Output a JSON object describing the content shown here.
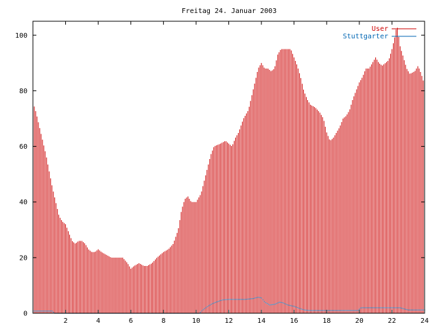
{
  "chart_data": {
    "type": "bar",
    "title": "Freitag 24. Januar 2003",
    "xlabel": "",
    "ylabel": "",
    "xlim": [
      0,
      24
    ],
    "ylim": [
      0,
      105
    ],
    "x_ticks": [
      "2",
      "4",
      "6",
      "8",
      "10",
      "12",
      "14",
      "16",
      "18",
      "20",
      "22",
      "24"
    ],
    "y_ticks": [
      "0",
      "20",
      "40",
      "60",
      "80",
      "100"
    ],
    "grid": false,
    "legend_position": "top-right",
    "sample_interval_minutes": 5,
    "series": [
      {
        "name": "User",
        "color": "#cc0000",
        "style": "impulses",
        "anchors": [
          [
            0,
            76
          ],
          [
            0.2,
            72
          ],
          [
            0.4,
            67
          ],
          [
            0.6,
            62
          ],
          [
            0.8,
            57
          ],
          [
            1.0,
            51
          ],
          [
            1.2,
            45
          ],
          [
            1.4,
            40
          ],
          [
            1.6,
            35
          ],
          [
            1.8,
            33
          ],
          [
            2.0,
            32
          ],
          [
            2.2,
            29
          ],
          [
            2.4,
            26
          ],
          [
            2.6,
            25
          ],
          [
            2.8,
            26
          ],
          [
            3.0,
            26
          ],
          [
            3.2,
            25
          ],
          [
            3.4,
            23
          ],
          [
            3.6,
            22
          ],
          [
            3.8,
            22
          ],
          [
            4.0,
            23
          ],
          [
            4.2,
            22
          ],
          [
            4.5,
            21
          ],
          [
            4.8,
            20
          ],
          [
            5.0,
            20
          ],
          [
            5.5,
            20
          ],
          [
            5.8,
            18
          ],
          [
            6.0,
            16
          ],
          [
            6.2,
            17
          ],
          [
            6.5,
            18
          ],
          [
            6.8,
            17
          ],
          [
            7.0,
            17
          ],
          [
            7.3,
            18
          ],
          [
            7.6,
            20
          ],
          [
            8.0,
            22
          ],
          [
            8.3,
            23
          ],
          [
            8.6,
            25
          ],
          [
            8.9,
            30
          ],
          [
            9.1,
            37
          ],
          [
            9.3,
            41
          ],
          [
            9.5,
            42
          ],
          [
            9.7,
            40
          ],
          [
            10.0,
            40
          ],
          [
            10.3,
            43
          ],
          [
            10.6,
            50
          ],
          [
            10.9,
            57
          ],
          [
            11.1,
            60
          ],
          [
            11.5,
            61
          ],
          [
            11.8,
            62
          ],
          [
            12.0,
            61
          ],
          [
            12.2,
            60
          ],
          [
            12.4,
            63
          ],
          [
            12.6,
            65
          ],
          [
            12.9,
            70
          ],
          [
            13.2,
            73
          ],
          [
            13.4,
            78
          ],
          [
            13.6,
            83
          ],
          [
            13.8,
            88
          ],
          [
            14.0,
            90
          ],
          [
            14.2,
            88
          ],
          [
            14.4,
            88
          ],
          [
            14.6,
            87
          ],
          [
            14.8,
            88
          ],
          [
            15.0,
            93
          ],
          [
            15.2,
            95
          ],
          [
            15.5,
            95
          ],
          [
            15.8,
            95
          ],
          [
            16.0,
            92
          ],
          [
            16.2,
            89
          ],
          [
            16.4,
            85
          ],
          [
            16.6,
            80
          ],
          [
            16.8,
            77
          ],
          [
            17.0,
            75
          ],
          [
            17.3,
            74
          ],
          [
            17.6,
            72
          ],
          [
            17.8,
            70
          ],
          [
            18.0,
            65
          ],
          [
            18.2,
            62
          ],
          [
            18.4,
            63
          ],
          [
            18.6,
            65
          ],
          [
            18.8,
            67
          ],
          [
            19.0,
            70
          ],
          [
            19.2,
            71
          ],
          [
            19.4,
            73
          ],
          [
            19.6,
            77
          ],
          [
            19.8,
            80
          ],
          [
            20.0,
            83
          ],
          [
            20.2,
            85
          ],
          [
            20.4,
            88
          ],
          [
            20.6,
            88
          ],
          [
            20.8,
            90
          ],
          [
            21.0,
            92
          ],
          [
            21.2,
            90
          ],
          [
            21.4,
            89
          ],
          [
            21.6,
            90
          ],
          [
            21.8,
            91
          ],
          [
            22.0,
            95
          ],
          [
            22.2,
            100
          ],
          [
            22.3,
            104
          ],
          [
            22.5,
            96
          ],
          [
            22.7,
            92
          ],
          [
            22.9,
            88
          ],
          [
            23.1,
            86
          ],
          [
            23.4,
            87
          ],
          [
            23.6,
            89
          ],
          [
            23.8,
            86
          ],
          [
            24.0,
            82
          ]
        ]
      },
      {
        "name": "Stuttgarter",
        "color": "#0066b3",
        "style": "points",
        "anchors": [
          [
            0,
            0.8
          ],
          [
            0.5,
            0.8
          ],
          [
            1.2,
            0.8
          ],
          [
            1.3,
            0
          ],
          [
            10.2,
            0
          ],
          [
            10.4,
            1.2
          ],
          [
            10.7,
            2.5
          ],
          [
            11.0,
            3.5
          ],
          [
            11.3,
            4.2
          ],
          [
            11.6,
            4.8
          ],
          [
            12.0,
            5
          ],
          [
            12.5,
            5
          ],
          [
            13.0,
            5
          ],
          [
            13.5,
            5.3
          ],
          [
            13.8,
            5.8
          ],
          [
            14.0,
            5.5
          ],
          [
            14.2,
            4
          ],
          [
            14.5,
            3
          ],
          [
            14.8,
            3.2
          ],
          [
            15.1,
            4
          ],
          [
            15.3,
            3.8
          ],
          [
            15.6,
            3
          ],
          [
            16.0,
            2.5
          ],
          [
            16.3,
            1.8
          ],
          [
            16.6,
            1.2
          ],
          [
            17.0,
            1.0
          ],
          [
            18.0,
            1.0
          ],
          [
            19.0,
            1.0
          ],
          [
            19.9,
            1.0
          ],
          [
            20.1,
            2
          ],
          [
            21.0,
            2
          ],
          [
            22.0,
            2
          ],
          [
            22.5,
            2
          ],
          [
            22.8,
            1.5
          ],
          [
            23.0,
            1.2
          ],
          [
            24.0,
            1.2
          ]
        ]
      }
    ]
  },
  "legend": [
    {
      "label": "User",
      "color": "#cc0000"
    },
    {
      "label": "Stuttgarter",
      "color": "#0066b3"
    }
  ]
}
